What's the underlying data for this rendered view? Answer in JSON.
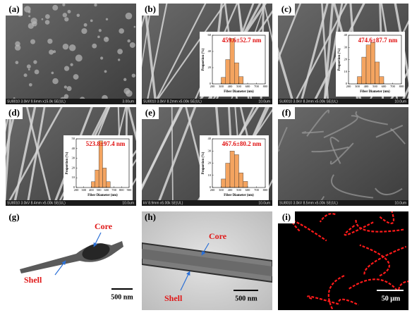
{
  "panels": [
    {
      "label": "(a)",
      "footer_left": "SU8010 3.0kV 9.6mm x15.0k SE(UL)",
      "footer_right": "3.00um"
    },
    {
      "label": "(b)",
      "footer_left": "SU8010 3.0kV 8.2mm x5.00k SE(UL)",
      "footer_right": "10.0um",
      "chart_data": {
        "type": "histogram",
        "title": "459.6±52.7 nm",
        "ylabel": "Proportion (%)",
        "xlabel": "Fiber Diameter (nm)",
        "bins": [
          300,
          350,
          400,
          450,
          500,
          550
        ],
        "values": [
          8,
          30,
          56,
          26,
          9
        ],
        "color": "#f4a460",
        "xlim": [
          200,
          800
        ],
        "xticks": [
          200,
          300,
          400,
          500,
          600,
          700,
          800
        ],
        "ylim": [
          0,
          60
        ],
        "yticks": [
          0,
          20,
          40,
          60
        ]
      }
    },
    {
      "label": "(c)",
      "footer_left": "SU8010 3.0kV 8.3mm x5.00k SE(UL)",
      "footer_right": "10.0um",
      "chart_data": {
        "type": "histogram",
        "title": "474.6±87.7 nm",
        "ylabel": "Proportion (%)",
        "xlabel": "Fiber Diameter (nm)",
        "bins": [
          300,
          350,
          400,
          450,
          500,
          550,
          600
        ],
        "values": [
          6,
          22,
          32,
          34,
          18,
          6
        ],
        "color": "#f4a460",
        "xlim": [
          200,
          800
        ],
        "xticks": [
          200,
          300,
          400,
          500,
          600,
          700,
          800
        ],
        "ylim": [
          0,
          40
        ],
        "yticks": [
          0,
          10,
          20,
          30,
          40
        ]
      }
    },
    {
      "label": "(d)",
      "footer_left": "SU8010 3.0kV 8.4mm x5.00k SE(UL)",
      "footer_right": "10.0um",
      "chart_data": {
        "type": "histogram",
        "title": "523.8±97.4 nm",
        "ylabel": "Proportion (%)",
        "xlabel": "Fiber Diameter (nm)",
        "bins": [
          400,
          450,
          500,
          550,
          600,
          650
        ],
        "values": [
          6,
          18,
          48,
          20,
          6
        ],
        "color": "#f4a460",
        "xlim": [
          200,
          900
        ],
        "xticks": [
          200,
          300,
          400,
          500,
          600,
          700,
          800,
          900
        ],
        "ylim": [
          0,
          50
        ],
        "yticks": [
          0,
          10,
          20,
          30,
          40,
          50
        ]
      }
    },
    {
      "label": "(e)",
      "footer_left": "kV 8.9mm x5.00k SE(UL)",
      "footer_right": "10.0um",
      "chart_data": {
        "type": "histogram",
        "title": "467.6±80.2 nm",
        "ylabel": "Proportion (%)",
        "xlabel": "Fiber Diameter (nm)",
        "bins": [
          300,
          350,
          400,
          450,
          500,
          550,
          600
        ],
        "values": [
          7,
          20,
          30,
          27,
          12,
          5
        ],
        "color": "#f4a460",
        "xlim": [
          200,
          800
        ],
        "xticks": [
          200,
          300,
          400,
          500,
          600,
          700,
          800
        ],
        "ylim": [
          0,
          40
        ],
        "yticks": [
          0,
          10,
          20,
          30,
          40
        ]
      }
    },
    {
      "label": "(f)",
      "footer_left": "SU8010 3.0kV 8.5mm x5.00k SE(UL)",
      "footer_right": "10.0um"
    },
    {
      "label": "(g)",
      "core": "Core",
      "shell": "Shell",
      "scale": "500 nm"
    },
    {
      "label": "(h)",
      "core": "Core",
      "shell": "Shell",
      "scale": "500 nm"
    },
    {
      "label": "(i)",
      "scale": "50 μm"
    }
  ]
}
